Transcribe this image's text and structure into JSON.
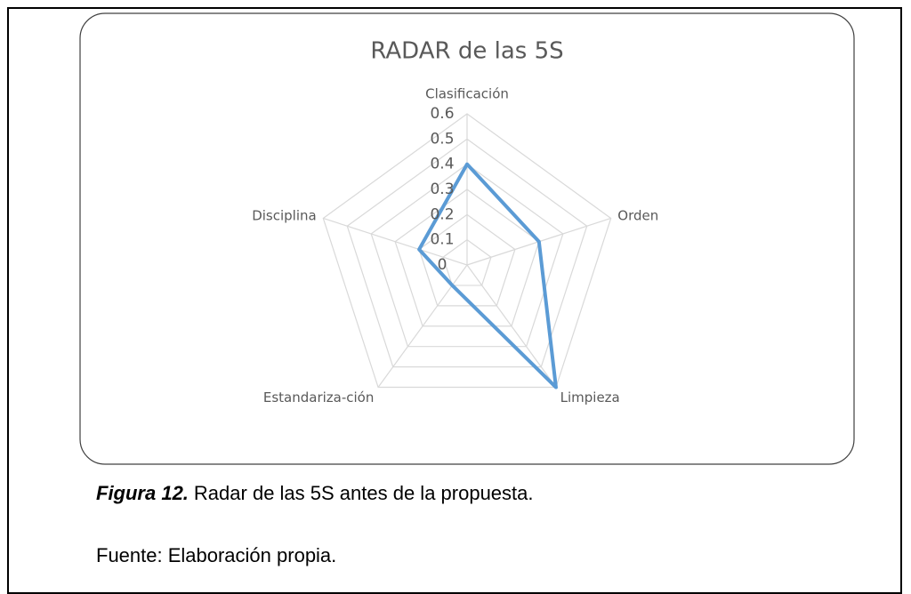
{
  "chart_data": {
    "type": "radar",
    "title": "RADAR de las 5S",
    "categories": [
      "Clasificación",
      "Orden",
      "Limpieza",
      "Estandariza-ción",
      "Disciplina"
    ],
    "values": [
      0.4,
      0.3,
      0.6,
      0.1,
      0.2
    ],
    "color": "#5b9bd5",
    "rlim": [
      0,
      0.6
    ],
    "rticks": [
      0,
      0.1,
      0.2,
      0.3,
      0.4,
      0.5,
      0.6
    ],
    "grid": true
  },
  "caption": {
    "label": "Figura 12.",
    "text": "Radar de las 5S antes de la propuesta."
  },
  "source": "Fuente: Elaboración propia."
}
